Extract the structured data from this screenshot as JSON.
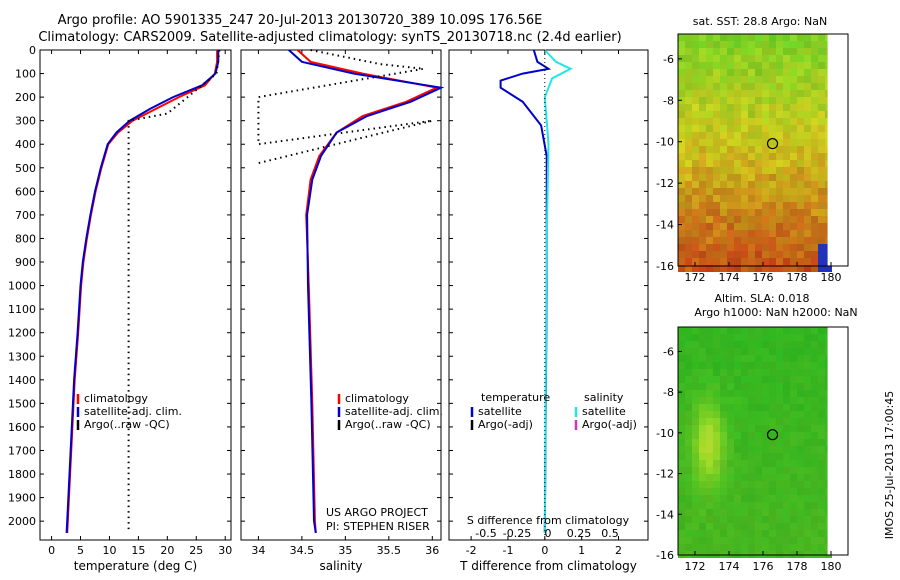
{
  "header": {
    "line1": "Argo profile: AO 5901335_247 20-Jul-2013 20130720_389 10.09S 176.56E",
    "line2": "Climatology: CARS2009. Satellite-adjusted climatology: synTS_20130718.nc (2.4d earlier)"
  },
  "footer_stamp": "IMOS 25-Jul-2013 17:00:45",
  "colors": {
    "climatology": "#ff0000",
    "satellite": "#0000cc",
    "satellite_salinity": "#22e5e5",
    "argo": "#000000",
    "argo_adj_salinity": "#cc33cc"
  },
  "chart_data": [
    {
      "type": "line",
      "id": "temperature-profile",
      "xlabel": "temperature (deg C)",
      "ylim": [
        2080,
        0
      ],
      "xlim": [
        -2,
        31
      ],
      "xticks": [
        0,
        5,
        10,
        15,
        20,
        25,
        30
      ],
      "yticks": [
        0,
        100,
        200,
        300,
        400,
        500,
        600,
        700,
        800,
        900,
        1000,
        1100,
        1200,
        1300,
        1400,
        1500,
        1600,
        1700,
        1800,
        1900,
        2000
      ],
      "legend": [
        "climatology",
        "satellite-adj. clim.",
        "Argo(..raw -QC)"
      ],
      "series": [
        {
          "name": "climatology",
          "points": [
            [
              28.6,
              0
            ],
            [
              28.6,
              50
            ],
            [
              28.2,
              100
            ],
            [
              26.5,
              150
            ],
            [
              22,
              200
            ],
            [
              18,
              250
            ],
            [
              14,
              300
            ],
            [
              11.5,
              350
            ],
            [
              9.8,
              400
            ],
            [
              8.6,
              500
            ],
            [
              7.6,
              600
            ],
            [
              6.8,
              700
            ],
            [
              6.1,
              800
            ],
            [
              5.5,
              900
            ],
            [
              5.1,
              1000
            ],
            [
              4.6,
              1200
            ],
            [
              4.0,
              1400
            ],
            [
              3.6,
              1600
            ],
            [
              3.2,
              1800
            ],
            [
              2.8,
              2000
            ],
            [
              2.7,
              2050
            ]
          ]
        },
        {
          "name": "satellite-adj. clim.",
          "points": [
            [
              28.8,
              0
            ],
            [
              28.8,
              50
            ],
            [
              28.3,
              100
            ],
            [
              26,
              150
            ],
            [
              21,
              200
            ],
            [
              17,
              250
            ],
            [
              13.5,
              300
            ],
            [
              11.2,
              350
            ],
            [
              9.7,
              400
            ],
            [
              8.5,
              500
            ],
            [
              7.5,
              600
            ],
            [
              6.7,
              700
            ],
            [
              6.0,
              800
            ],
            [
              5.4,
              900
            ],
            [
              5.0,
              1000
            ],
            [
              4.5,
              1200
            ],
            [
              3.9,
              1400
            ],
            [
              3.5,
              1600
            ],
            [
              3.1,
              1800
            ],
            [
              2.7,
              2000
            ],
            [
              2.6,
              2050
            ]
          ]
        },
        {
          "name": "Argo(..raw -QC)",
          "points": [
            [
              29,
              0
            ],
            [
              28.5,
              100
            ],
            [
              20,
              270
            ],
            [
              13.3,
              300
            ],
            [
              13.3,
              2050
            ]
          ]
        }
      ]
    },
    {
      "type": "line",
      "id": "salinity-profile",
      "xlabel": "salinity",
      "ylim": [
        2080,
        0
      ],
      "xlim": [
        33.8,
        36.1
      ],
      "xticks": [
        34,
        34.5,
        35,
        35.5,
        36
      ],
      "legend": [
        "climatology",
        "satellite-adj. clim.",
        "Argo(..raw -QC)"
      ],
      "annotation": [
        "US ARGO PROJECT",
        "PI: STEPHEN RISER"
      ],
      "series": [
        {
          "name": "climatology",
          "points": [
            [
              34.45,
              0
            ],
            [
              34.6,
              50
            ],
            [
              35.2,
              100
            ],
            [
              36.05,
              160
            ],
            [
              35.7,
              220
            ],
            [
              35.2,
              280
            ],
            [
              34.9,
              350
            ],
            [
              34.7,
              450
            ],
            [
              34.6,
              550
            ],
            [
              34.55,
              700
            ],
            [
              34.58,
              1000
            ],
            [
              34.62,
              1500
            ],
            [
              34.65,
              2000
            ],
            [
              34.66,
              2050
            ]
          ]
        },
        {
          "name": "satellite-adj. clim.",
          "points": [
            [
              34.35,
              0
            ],
            [
              34.5,
              50
            ],
            [
              35.1,
              100
            ],
            [
              36.1,
              160
            ],
            [
              35.75,
              220
            ],
            [
              35.25,
              280
            ],
            [
              34.9,
              350
            ],
            [
              34.72,
              450
            ],
            [
              34.62,
              550
            ],
            [
              34.56,
              700
            ],
            [
              34.57,
              1000
            ],
            [
              34.61,
              1500
            ],
            [
              34.64,
              2000
            ],
            [
              34.66,
              2050
            ]
          ]
        },
        {
          "name": "Argo(..raw -QC)",
          "points": [
            [
              34.6,
              0
            ],
            [
              35.4,
              60
            ],
            [
              35.9,
              80
            ],
            [
              34.0,
              200
            ],
            [
              34.0,
              400
            ],
            [
              36.0,
              300
            ],
            [
              34.0,
              480
            ]
          ]
        }
      ]
    },
    {
      "type": "line",
      "id": "difference-profile",
      "xlabel": "T difference from climatology",
      "xlabel2": "S difference from climatology",
      "ylim": [
        2080,
        0
      ],
      "xlim": [
        -2.6,
        2.8
      ],
      "xticks": [
        -2,
        -1,
        0,
        1,
        2
      ],
      "xticks_s_labels": [
        "-0.5",
        "-0.25",
        "0",
        "0.25",
        "0.5"
      ],
      "legend": {
        "temperature_title": "temperature",
        "salinity_title": "salinity",
        "temperature_items": [
          "satellite",
          "Argo(-adj)"
        ],
        "salinity_items": [
          "satellite",
          "Argo(-adj)"
        ]
      },
      "series": [
        {
          "name": "satellite",
          "points": [
            [
              -0.3,
              0
            ],
            [
              -0.2,
              50
            ],
            [
              0.1,
              80
            ],
            [
              -0.6,
              100
            ],
            [
              -1.2,
              130
            ],
            [
              -1.2,
              160
            ],
            [
              -0.6,
              220
            ],
            [
              -0.1,
              320
            ],
            [
              0.05,
              450
            ],
            [
              0.05,
              1000
            ],
            [
              0.0,
              2050
            ]
          ]
        },
        {
          "name": "satellite salinity",
          "points": [
            [
              0.0,
              0
            ],
            [
              0.3,
              50
            ],
            [
              0.7,
              80
            ],
            [
              0.2,
              120
            ],
            [
              0.0,
              200
            ],
            [
              0.1,
              400
            ],
            [
              0.05,
              800
            ],
            [
              0.0,
              2050
            ]
          ]
        }
      ]
    },
    {
      "type": "heatmap",
      "id": "sst-map",
      "title": "sat. SST: 28.8 Argo: NaN",
      "xticks": [
        "172",
        "174",
        "176",
        "178",
        "180"
      ],
      "yticks": [
        "-6",
        "-8",
        "-10",
        "-12",
        "-14",
        "-16"
      ],
      "xlim": [
        171,
        181
      ],
      "ylim": [
        -16,
        -4.8
      ],
      "profile_location": [
        176.56,
        -10.09
      ]
    },
    {
      "type": "heatmap",
      "id": "sla-map",
      "title": "Altim. SLA: 0.018",
      "subtitle": "Argo h1000: NaN h2000: NaN",
      "xticks": [
        "172",
        "174",
        "176",
        "178",
        "180"
      ],
      "yticks": [
        "-6",
        "-8",
        "-10",
        "-12",
        "-14",
        "-16"
      ],
      "xlim": [
        171,
        181
      ],
      "ylim": [
        -16,
        -4.8
      ],
      "profile_location": [
        176.56,
        -10.09
      ]
    }
  ]
}
